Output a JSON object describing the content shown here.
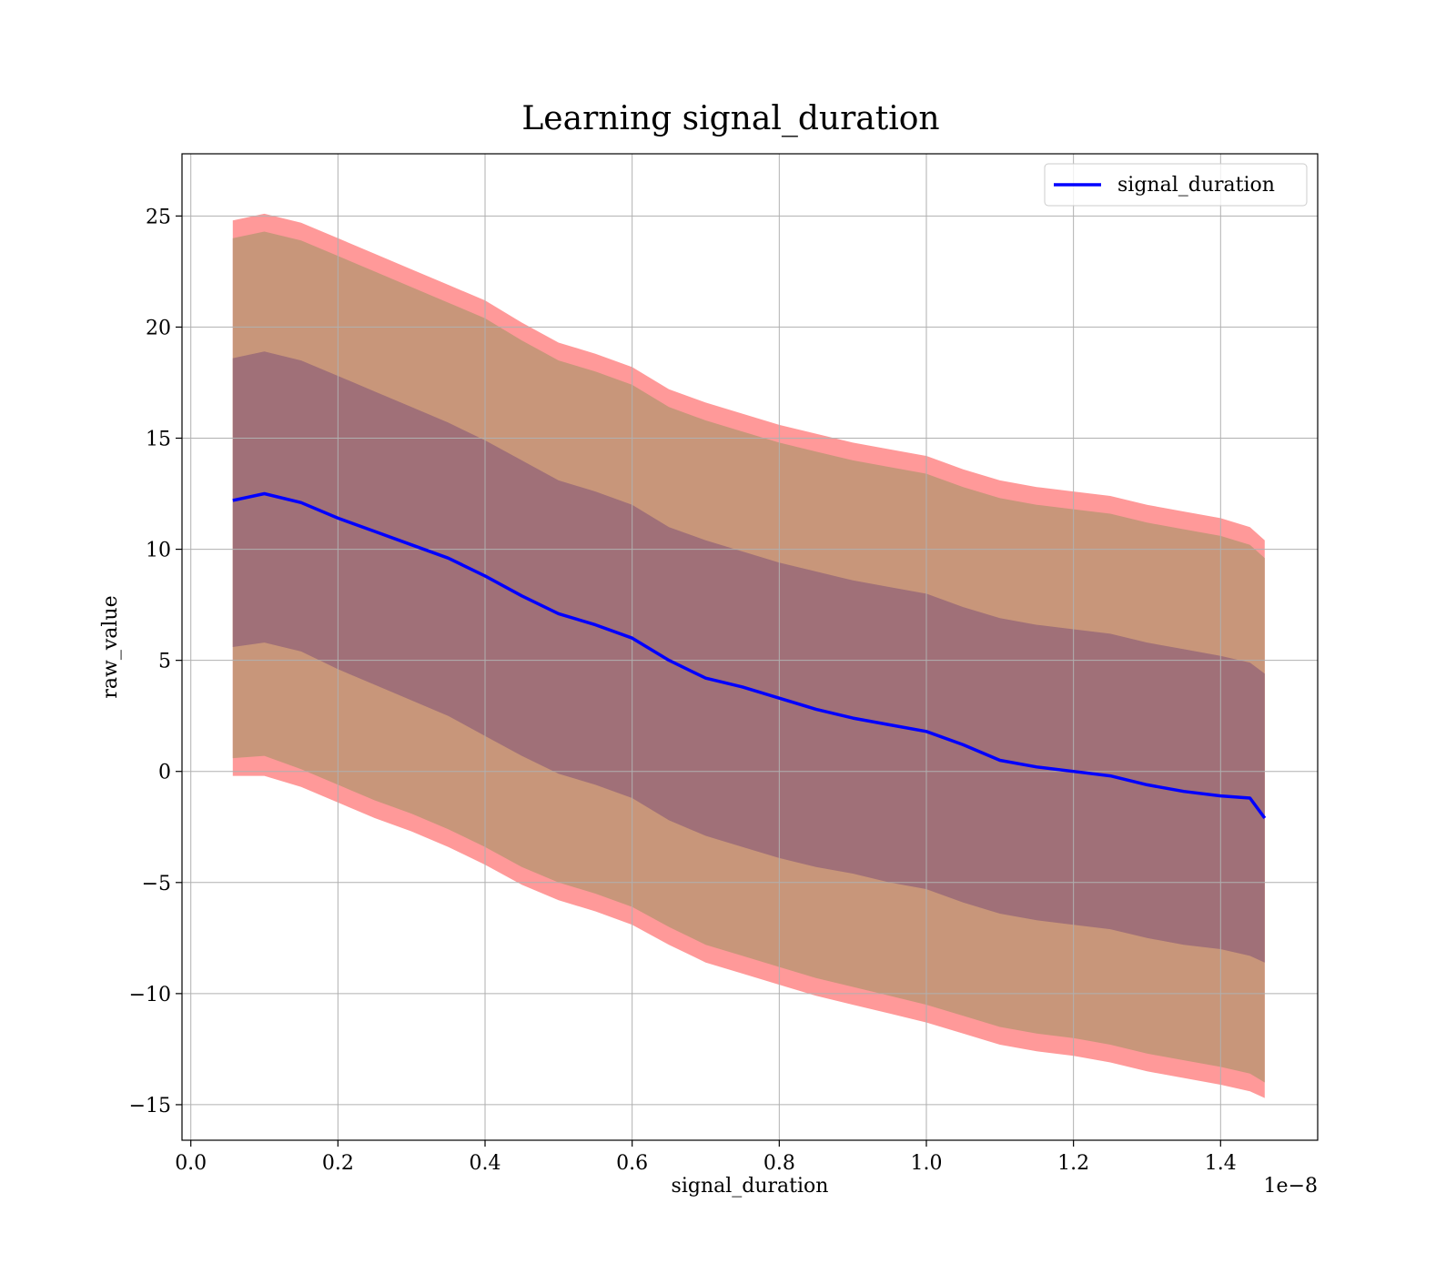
{
  "chart_data": {
    "type": "line",
    "title": "Learning signal_duration",
    "xlabel": "signal_duration",
    "ylabel": "raw_value",
    "x_offset_label": "1e−8",
    "xlim": [
      -0.012,
      1.532
    ],
    "ylim": [
      -16.6,
      27.8
    ],
    "x_ticks": [
      0.0,
      0.2,
      0.4,
      0.6,
      0.8,
      1.0,
      1.2,
      1.4
    ],
    "x_tick_labels": [
      "0.0",
      "0.2",
      "0.4",
      "0.6",
      "0.8",
      "1.0",
      "1.2",
      "1.4"
    ],
    "y_ticks": [
      -15,
      -10,
      -5,
      0,
      5,
      10,
      15,
      20,
      25
    ],
    "y_tick_labels": [
      "−15",
      "−10",
      "−5",
      "0",
      "5",
      "10",
      "15",
      "20",
      "25"
    ],
    "grid": true,
    "legend_position": "top-right",
    "colors": {
      "line": "#0000ff",
      "band_outer": "#ff9999",
      "band_middle": "#c8967a",
      "band_inner": "#a07078"
    },
    "series": [
      {
        "name": "signal_duration",
        "x": [
          0.057,
          0.1,
          0.15,
          0.2,
          0.25,
          0.3,
          0.35,
          0.4,
          0.45,
          0.5,
          0.55,
          0.6,
          0.65,
          0.7,
          0.75,
          0.8,
          0.85,
          0.9,
          0.95,
          1.0,
          1.05,
          1.1,
          1.15,
          1.2,
          1.25,
          1.3,
          1.35,
          1.4,
          1.44,
          1.46
        ],
        "y": [
          12.2,
          12.5,
          12.1,
          11.4,
          10.8,
          10.2,
          9.6,
          8.8,
          7.9,
          7.1,
          6.6,
          6.0,
          5.0,
          4.2,
          3.8,
          3.3,
          2.8,
          2.4,
          2.1,
          1.8,
          1.2,
          0.5,
          0.2,
          0.0,
          -0.2,
          -0.6,
          -0.9,
          -1.1,
          -1.2,
          -2.1
        ]
      }
    ],
    "bands": [
      {
        "level": "outer",
        "x": [
          0.057,
          0.1,
          0.15,
          0.2,
          0.25,
          0.3,
          0.35,
          0.4,
          0.45,
          0.5,
          0.55,
          0.6,
          0.65,
          0.7,
          0.75,
          0.8,
          0.85,
          0.9,
          0.95,
          1.0,
          1.05,
          1.1,
          1.15,
          1.2,
          1.25,
          1.3,
          1.35,
          1.4,
          1.44,
          1.46
        ],
        "lower": [
          -0.2,
          -0.2,
          -0.7,
          -1.4,
          -2.1,
          -2.7,
          -3.4,
          -4.2,
          -5.1,
          -5.8,
          -6.3,
          -6.9,
          -7.8,
          -8.6,
          -9.1,
          -9.6,
          -10.1,
          -10.5,
          -10.9,
          -11.3,
          -11.8,
          -12.3,
          -12.6,
          -12.8,
          -13.1,
          -13.5,
          -13.8,
          -14.1,
          -14.4,
          -14.7
        ],
        "upper": [
          24.8,
          25.1,
          24.7,
          24.0,
          23.3,
          22.6,
          21.9,
          21.2,
          20.2,
          19.3,
          18.8,
          18.2,
          17.2,
          16.6,
          16.1,
          15.6,
          15.2,
          14.8,
          14.5,
          14.2,
          13.6,
          13.1,
          12.8,
          12.6,
          12.4,
          12.0,
          11.7,
          11.4,
          11.0,
          10.4
        ]
      },
      {
        "level": "middle",
        "x": [
          0.057,
          0.1,
          0.15,
          0.2,
          0.25,
          0.3,
          0.35,
          0.4,
          0.45,
          0.5,
          0.55,
          0.6,
          0.65,
          0.7,
          0.75,
          0.8,
          0.85,
          0.9,
          0.95,
          1.0,
          1.05,
          1.1,
          1.15,
          1.2,
          1.25,
          1.3,
          1.35,
          1.4,
          1.44,
          1.46
        ],
        "lower": [
          0.6,
          0.7,
          0.1,
          -0.6,
          -1.3,
          -1.9,
          -2.6,
          -3.4,
          -4.3,
          -5.0,
          -5.5,
          -6.1,
          -7.0,
          -7.8,
          -8.3,
          -8.8,
          -9.3,
          -9.7,
          -10.1,
          -10.5,
          -11.0,
          -11.5,
          -11.8,
          -12.0,
          -12.3,
          -12.7,
          -13.0,
          -13.3,
          -13.6,
          -14.0
        ],
        "upper": [
          24.0,
          24.3,
          23.9,
          23.2,
          22.5,
          21.8,
          21.1,
          20.4,
          19.4,
          18.5,
          18.0,
          17.4,
          16.4,
          15.8,
          15.3,
          14.8,
          14.4,
          14.0,
          13.7,
          13.4,
          12.8,
          12.3,
          12.0,
          11.8,
          11.6,
          11.2,
          10.9,
          10.6,
          10.2,
          9.6
        ]
      },
      {
        "level": "inner",
        "x": [
          0.057,
          0.1,
          0.15,
          0.2,
          0.25,
          0.3,
          0.35,
          0.4,
          0.45,
          0.5,
          0.55,
          0.6,
          0.65,
          0.7,
          0.75,
          0.8,
          0.85,
          0.9,
          0.95,
          1.0,
          1.05,
          1.1,
          1.15,
          1.2,
          1.25,
          1.3,
          1.35,
          1.4,
          1.44,
          1.46
        ],
        "lower": [
          5.6,
          5.8,
          5.4,
          4.6,
          3.9,
          3.2,
          2.5,
          1.6,
          0.7,
          -0.1,
          -0.6,
          -1.2,
          -2.2,
          -2.9,
          -3.4,
          -3.9,
          -4.3,
          -4.6,
          -5.0,
          -5.3,
          -5.9,
          -6.4,
          -6.7,
          -6.9,
          -7.1,
          -7.5,
          -7.8,
          -8.0,
          -8.3,
          -8.6
        ],
        "upper": [
          18.6,
          18.9,
          18.5,
          17.8,
          17.1,
          16.4,
          15.7,
          14.9,
          14.0,
          13.1,
          12.6,
          12.0,
          11.0,
          10.4,
          9.9,
          9.4,
          9.0,
          8.6,
          8.3,
          8.0,
          7.4,
          6.9,
          6.6,
          6.4,
          6.2,
          5.8,
          5.5,
          5.2,
          4.9,
          4.4
        ]
      }
    ]
  }
}
